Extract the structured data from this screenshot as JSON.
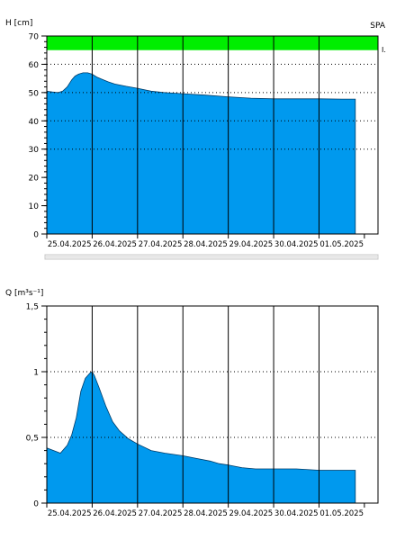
{
  "chart_data": [
    {
      "type": "area",
      "title": "",
      "ylabel": "H [cm]",
      "xlabel": "",
      "corner_label": "SPA",
      "band_marker": "I.",
      "ylim": [
        0,
        70
      ],
      "yticks": [
        0,
        10,
        20,
        30,
        40,
        50,
        60,
        70
      ],
      "ytick_labels": [
        "0",
        "10",
        "20",
        "30",
        "40",
        "50",
        "60",
        "70"
      ],
      "ymajor_gridlines": [
        30,
        40,
        50,
        60
      ],
      "categories": [
        "25.04.2025",
        "26.04.2025",
        "27.04.2025",
        "28.04.2025",
        "29.04.2025",
        "30.04.2025",
        "01.05.2025"
      ],
      "xlim": [
        0,
        7.3
      ],
      "band": {
        "from": 65,
        "to": 70,
        "color": "#00ee00"
      },
      "series": [
        {
          "color": "#0099ee",
          "x": [
            0,
            0.12,
            0.25,
            0.35,
            0.45,
            0.55,
            0.62,
            0.7,
            0.8,
            0.9,
            1.0,
            1.1,
            1.2,
            1.35,
            1.5,
            1.75,
            2.0,
            2.3,
            2.6,
            3.0,
            3.5,
            4.0,
            4.5,
            5.0,
            5.5,
            6.0,
            6.5,
            6.8
          ],
          "y": [
            50.5,
            50.2,
            50.0,
            50.5,
            52.0,
            54.5,
            55.8,
            56.5,
            57.0,
            57.0,
            56.5,
            55.5,
            54.8,
            53.8,
            53.0,
            52.2,
            51.5,
            50.5,
            50.0,
            49.6,
            49.1,
            48.5,
            48.0,
            47.8,
            47.8,
            47.8,
            47.7,
            47.7
          ]
        }
      ],
      "grid": true
    },
    {
      "type": "area",
      "title": "",
      "ylabel": "Q [m³s⁻¹]",
      "xlabel": "",
      "ylim": [
        0,
        1.5
      ],
      "yticks": [
        0,
        0.5,
        1,
        1.5
      ],
      "ytick_labels": [
        "0",
        "0,5",
        "1",
        "1,5"
      ],
      "ymajor_gridlines": [
        0.5,
        1
      ],
      "categories": [
        "25.04.2025",
        "26.04.2025",
        "27.04.2025",
        "28.04.2025",
        "29.04.2025",
        "30.04.2025",
        "01.05.2025"
      ],
      "xlim": [
        0,
        7.3
      ],
      "series": [
        {
          "color": "#0099ee",
          "x": [
            0,
            0.15,
            0.3,
            0.45,
            0.55,
            0.65,
            0.75,
            0.85,
            0.95,
            1.0,
            1.05,
            1.15,
            1.3,
            1.45,
            1.6,
            1.8,
            2.0,
            2.3,
            2.6,
            3.0,
            3.3,
            3.6,
            3.8,
            4.0,
            4.3,
            4.6,
            5.0,
            5.5,
            6.0,
            6.5,
            6.8
          ],
          "y": [
            0.42,
            0.4,
            0.38,
            0.44,
            0.52,
            0.65,
            0.85,
            0.95,
            0.99,
            1.0,
            0.97,
            0.88,
            0.74,
            0.62,
            0.55,
            0.49,
            0.45,
            0.4,
            0.38,
            0.36,
            0.34,
            0.32,
            0.3,
            0.29,
            0.27,
            0.26,
            0.26,
            0.26,
            0.25,
            0.25,
            0.25
          ]
        }
      ],
      "grid": true
    }
  ]
}
